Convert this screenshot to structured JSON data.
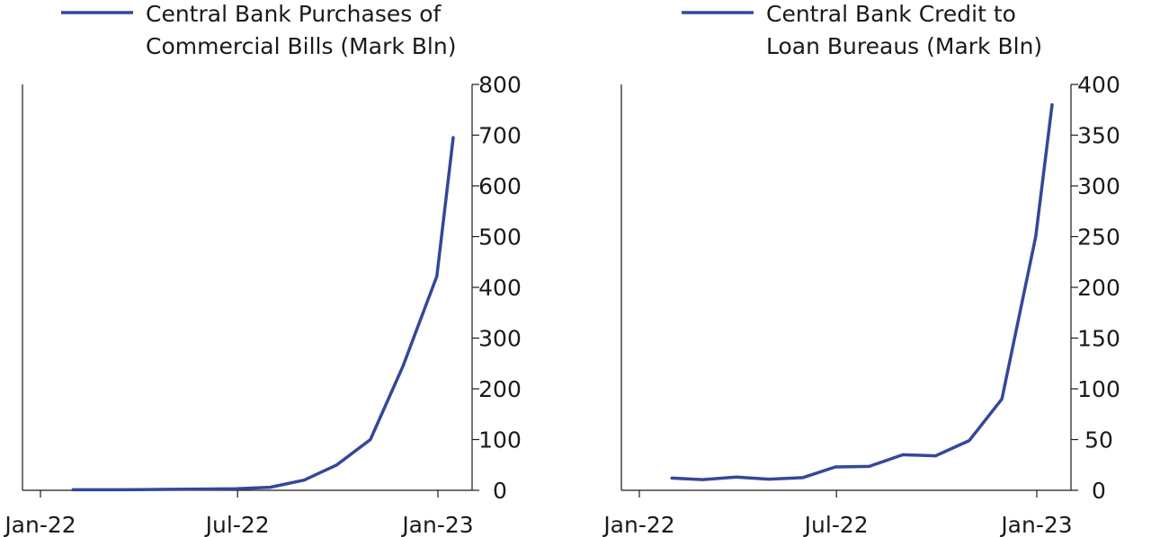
{
  "chart_data": [
    {
      "type": "line",
      "legend": {
        "lines": [
          "Central Bank Purchases of",
          "Commercial Bills (Mark Bln)"
        ],
        "placement": "top"
      },
      "color": "#35479a",
      "x_tick_labels": [
        "Jan-22",
        "Jul-22",
        "Jan-23"
      ],
      "y_axis_side": "right",
      "ylim": [
        0,
        800
      ],
      "y_ticks": [
        0,
        100,
        200,
        300,
        400,
        500,
        600,
        700,
        800
      ],
      "grid": false,
      "series": [
        {
          "x": [
            "2022-01-31",
            "2022-02-28",
            "2022-03-31",
            "2022-04-30",
            "2022-05-31",
            "2022-06-30",
            "2022-07-31",
            "2022-08-31",
            "2022-09-30",
            "2022-10-31",
            "2022-11-30",
            "2022-12-31",
            "2023-01-15"
          ],
          "values": [
            1,
            1,
            1.5,
            2,
            2.5,
            3,
            6,
            20,
            50,
            100,
            245,
            422,
            695
          ]
        }
      ]
    },
    {
      "type": "line",
      "legend": {
        "lines": [
          "Central Bank Credit to",
          "Loan Bureaus (Mark Bln)"
        ],
        "placement": "top"
      },
      "color": "#35479a",
      "x_tick_labels": [
        "Jan-22",
        "Jul-22",
        "Jan-23"
      ],
      "y_axis_side": "right",
      "ylim": [
        0,
        400
      ],
      "y_ticks": [
        0,
        50,
        100,
        150,
        200,
        250,
        300,
        350,
        400
      ],
      "grid": false,
      "series": [
        {
          "x": [
            "2022-01-31",
            "2022-02-28",
            "2022-03-31",
            "2022-04-30",
            "2022-05-31",
            "2022-06-30",
            "2022-07-31",
            "2022-08-31",
            "2022-09-30",
            "2022-10-31",
            "2022-11-30",
            "2022-12-31",
            "2023-01-15"
          ],
          "values": [
            12,
            10.5,
            13,
            11,
            12.5,
            23,
            23.5,
            35,
            34,
            49,
            90,
            250,
            380
          ]
        }
      ]
    }
  ]
}
